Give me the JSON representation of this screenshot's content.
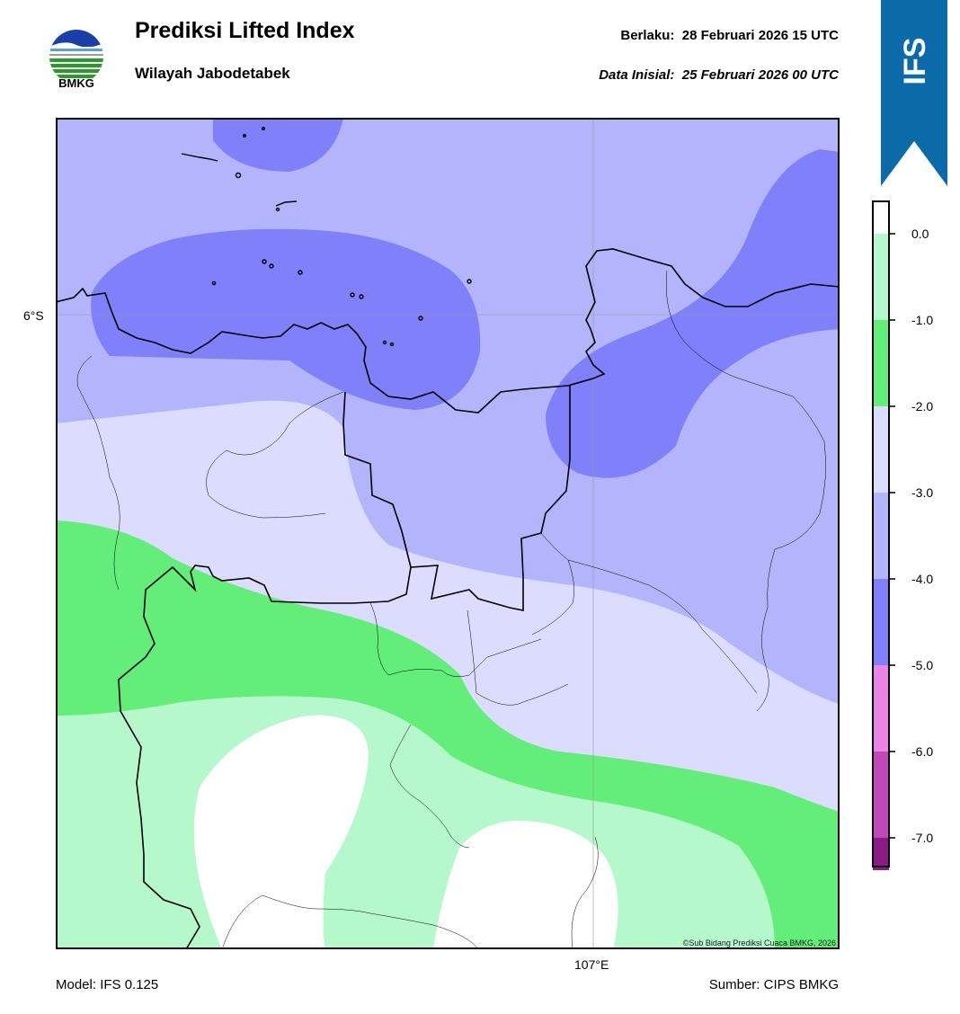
{
  "header": {
    "title": "Prediksi Lifted Index",
    "subtitle": "Wilayah Jabodetabek",
    "valid_label": "Berlaku:",
    "valid_time": "28 Februari 2026 15 UTC",
    "init_label": "Data Inisial:",
    "init_time": "25 Februari 2026 00 UTC"
  },
  "logo": {
    "text": "BMKG",
    "icon": "bmkg-logo-icon"
  },
  "banner": {
    "text": "IFS",
    "color": "#0a6ba8"
  },
  "map": {
    "lat_label": "6°S",
    "lon_label": "107°E",
    "credit": "©Sub Bidang Prediksi Cuaca BMKG, 2026"
  },
  "footer": {
    "model": "Model: IFS 0.125",
    "source": "Sumber: CIPS BMKG"
  },
  "legend": {
    "ticks": [
      "0.0",
      "-1.0",
      "-2.0",
      "-3.0",
      "-4.0",
      "-5.0",
      "-6.0",
      "-7.0"
    ],
    "bins": [
      {
        "range": "> 0.0",
        "color": "#ffffff"
      },
      {
        "range": "0.0 to -1.0",
        "color": "#b4f8cc"
      },
      {
        "range": "-1.0 to -2.0",
        "color": "#62ee78"
      },
      {
        "range": "-2.0 to -3.0",
        "color": "#dcdcfe"
      },
      {
        "range": "-3.0 to -4.0",
        "color": "#b3b4fc"
      },
      {
        "range": "-4.0 to -5.0",
        "color": "#7f80fa"
      },
      {
        "range": "-5.0 to -6.0",
        "color": "#ea84e6"
      },
      {
        "range": "-6.0 to -7.0",
        "color": "#c048b8"
      },
      {
        "range": "< -7.0",
        "color": "#8a1c86"
      }
    ]
  }
}
